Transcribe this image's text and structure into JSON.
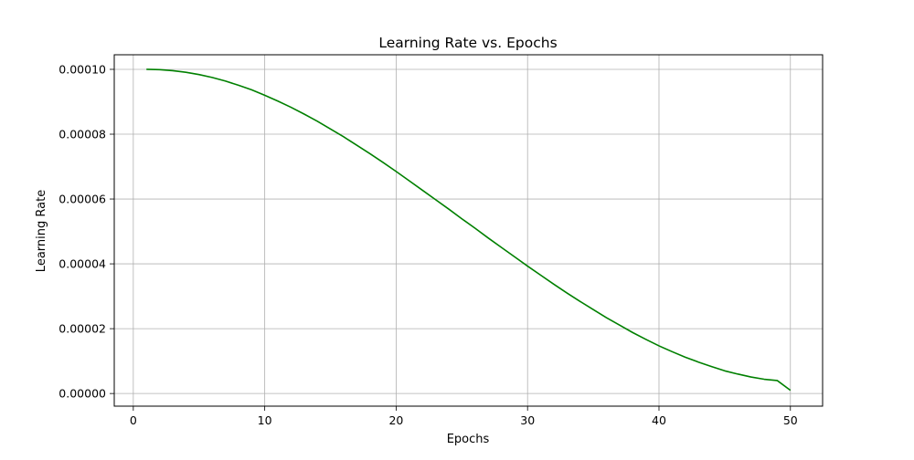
{
  "chart_data": {
    "type": "line",
    "title": "Learning Rate vs. Epochs",
    "xlabel": "Epochs",
    "ylabel": "Learning Rate",
    "xlim": [
      -1.45,
      52.45
    ],
    "ylim": [
      -3.9e-06,
      0.0001045
    ],
    "grid": true,
    "x_ticks": [
      0,
      10,
      20,
      30,
      40,
      50
    ],
    "x_tick_labels": [
      "0",
      "10",
      "20",
      "30",
      "40",
      "50"
    ],
    "y_ticks": [
      0,
      2e-05,
      4e-05,
      6e-05,
      8e-05,
      0.0001
    ],
    "y_tick_labels": [
      "0.00000",
      "0.00002",
      "0.00004",
      "0.00006",
      "0.00008",
      "0.00010"
    ],
    "colors": {
      "line": "#008000",
      "grid": "#b0b0b0",
      "axes": "#000000"
    },
    "series": [
      {
        "x": [
          1,
          2,
          3,
          4,
          5,
          6,
          7,
          8,
          9,
          10,
          11,
          12,
          13,
          14,
          15,
          16,
          17,
          18,
          19,
          20,
          21,
          22,
          23,
          24,
          25,
          26,
          27,
          28,
          29,
          30,
          31,
          32,
          33,
          34,
          35,
          36,
          37,
          38,
          39,
          40,
          41,
          42,
          43,
          44,
          45,
          46,
          47,
          48,
          49,
          50
        ],
        "values": [
          0.0001,
          9.99e-05,
          9.96e-05,
          9.91e-05,
          9.84e-05,
          9.75e-05,
          9.64e-05,
          9.51e-05,
          9.37e-05,
          9.2e-05,
          9.02e-05,
          8.83e-05,
          8.62e-05,
          8.4e-05,
          8.16e-05,
          7.92e-05,
          7.66e-05,
          7.4e-05,
          7.13e-05,
          6.85e-05,
          6.56e-05,
          6.27e-05,
          5.98e-05,
          5.69e-05,
          5.39e-05,
          5.1e-05,
          4.8e-05,
          4.51e-05,
          4.22e-05,
          3.93e-05,
          3.65e-05,
          3.37e-05,
          3.1e-05,
          2.84e-05,
          2.59e-05,
          2.34e-05,
          2.11e-05,
          1.88e-05,
          1.67e-05,
          1.47e-05,
          1.29e-05,
          1.12e-05,
          9.7e-06,
          8.3e-06,
          7e-06,
          6e-06,
          5.1e-06,
          4.4e-06,
          4e-06,
          1e-06
        ]
      }
    ]
  }
}
